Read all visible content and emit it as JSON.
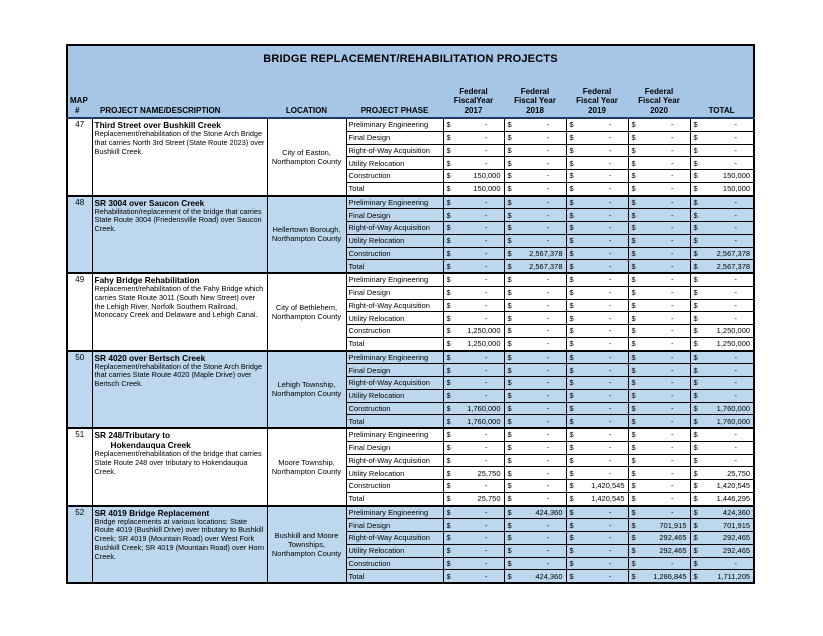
{
  "title": "BRIDGE REPLACEMENT/REHABILITATION PROJECTS",
  "colors": {
    "header_bg": "#a6c6e7",
    "shaded_row_bg": "#bdd7ee",
    "header_underline": "#1f3864",
    "border": "#000000"
  },
  "header": {
    "map": [
      "MAP",
      "#"
    ],
    "name": "PROJECT NAME/DESCRIPTION",
    "location": "LOCATION",
    "phase": "PROJECT PHASE",
    "years": [
      [
        "Federal",
        "FiscalYear",
        "2017"
      ],
      [
        "Federal",
        "Fiscal Year",
        "2018"
      ],
      [
        "Federal",
        "Fiscal Year",
        "2019"
      ],
      [
        "Federal",
        "Fiscal Year",
        "2020"
      ]
    ],
    "total": "TOTAL"
  },
  "phase_labels": [
    "Preliminary Engineering",
    "Final Design",
    "Right-of-Way Acquisition",
    "Utility Relocation",
    "Construction",
    "Total"
  ],
  "currency_symbol": "$",
  "projects": [
    {
      "map": "47",
      "name_lines": [
        "Third Street over Bushkill Creek"
      ],
      "description": "Replacement/rehabilitation of the Stone Arch Bridge that carries North 3rd Street (State Route 2023) over Bushkill Creek.",
      "location": "City of Easton, Northampton County",
      "shaded": false,
      "phases": [
        {
          "label": "Preliminary Engineering",
          "values": [
            "-",
            "-",
            "-",
            "-",
            "-"
          ]
        },
        {
          "label": "Final Design",
          "values": [
            "-",
            "-",
            "-",
            "-",
            "-"
          ]
        },
        {
          "label": "Right-of-Way Acquisition",
          "values": [
            "-",
            "-",
            "-",
            "-",
            "-"
          ]
        },
        {
          "label": "Utility Relocation",
          "values": [
            "-",
            "-",
            "-",
            "-",
            "-"
          ]
        },
        {
          "label": "Construction",
          "values": [
            "150,000",
            "-",
            "-",
            "-",
            "150,000"
          ]
        },
        {
          "label": "Total",
          "values": [
            "150,000",
            "-",
            "-",
            "-",
            "150,000"
          ]
        }
      ]
    },
    {
      "map": "48",
      "name_lines": [
        "SR 3004 over Saucon Creek"
      ],
      "description": "Rehabilitation/replacement of the bridge that carries State Route 3004 (Friedensville Road) over Saucon Creek.",
      "location": "Hellertown Borough, Northampton County",
      "shaded": true,
      "phases": [
        {
          "label": "Preliminary Engineering",
          "values": [
            "-",
            "-",
            "-",
            "-",
            "-"
          ]
        },
        {
          "label": "Final Design",
          "values": [
            "-",
            "-",
            "-",
            "-",
            "-"
          ]
        },
        {
          "label": "Right-of-Way Acquisition",
          "values": [
            "-",
            "-",
            "-",
            "-",
            "-"
          ]
        },
        {
          "label": "Utility Relocation",
          "values": [
            "-",
            "-",
            "-",
            "-",
            "-"
          ]
        },
        {
          "label": "Construction",
          "values": [
            "-",
            "2,567,378",
            "-",
            "-",
            "2,567,378"
          ]
        },
        {
          "label": "Total",
          "values": [
            "-",
            "2,567,378",
            "-",
            "-",
            "2,567,378"
          ]
        }
      ]
    },
    {
      "map": "49",
      "name_lines": [
        "Fahy Bridge Rehabilitation"
      ],
      "description": "Replacement/rehabilitation of the Fahy Bridge which carries State Route 3011 (South New Street) over the Lehigh River, Norfolk Southern Railroad, Monocacy Creek and Delaware and Lehigh Canal.",
      "location": "City of Bethlehem, Northampton County",
      "shaded": false,
      "phases": [
        {
          "label": "Preliminary Engineering",
          "values": [
            "-",
            "-",
            "-",
            "-",
            "-"
          ]
        },
        {
          "label": "Final Design",
          "values": [
            "-",
            "-",
            "-",
            "-",
            "-"
          ]
        },
        {
          "label": "Right-of-Way Acquisition",
          "values": [
            "-",
            "-",
            "-",
            "-",
            "-"
          ]
        },
        {
          "label": "Utility Relocation",
          "values": [
            "-",
            "-",
            "-",
            "-",
            "-"
          ]
        },
        {
          "label": "Construction",
          "values": [
            "1,250,000",
            "-",
            "-",
            "-",
            "1,250,000"
          ]
        },
        {
          "label": "Total",
          "values": [
            "1,250,000",
            "-",
            "-",
            "-",
            "1,250,000"
          ]
        }
      ]
    },
    {
      "map": "50",
      "name_lines": [
        "SR 4020 over Bertsch Creek"
      ],
      "description": "Replacement/rehabilitation of the Stone Arch Bridge that carries State Route 4020 (Maple Drive) over Bertsch Creek.",
      "location": "Lehigh Township, Northampton County",
      "shaded": true,
      "phases": [
        {
          "label": "Preliminary Engineering",
          "values": [
            "-",
            "-",
            "-",
            "-",
            "-"
          ]
        },
        {
          "label": "Final Design",
          "values": [
            "-",
            "-",
            "-",
            "-",
            "-"
          ]
        },
        {
          "label": "Right-of-Way Acquisition",
          "values": [
            "-",
            "-",
            "-",
            "-",
            "-"
          ]
        },
        {
          "label": "Utility Relocation",
          "values": [
            "-",
            "-",
            "-",
            "-",
            "-"
          ]
        },
        {
          "label": "Construction",
          "values": [
            "1,760,000",
            "-",
            "-",
            "-",
            "1,760,000"
          ]
        },
        {
          "label": "Total",
          "values": [
            "1,760,000",
            "-",
            "-",
            "-",
            "1,760,000"
          ]
        }
      ]
    },
    {
      "map": "51",
      "name_lines": [
        "SR 248/Tributary to",
        "Hokendauqua Creek"
      ],
      "description": "Replacement/rehabilitation of the bridge that carries State Route 248 over tributary to Hokendauqua Creek.",
      "location": "Moore Township, Northampton County",
      "shaded": false,
      "phases": [
        {
          "label": "Preliminary Engineering",
          "values": [
            "-",
            "-",
            "-",
            "-",
            "-"
          ]
        },
        {
          "label": "Final Design",
          "values": [
            "-",
            "-",
            "-",
            "-",
            "-"
          ]
        },
        {
          "label": "Right-of-Way Acquisition",
          "values": [
            "-",
            "-",
            "-",
            "-",
            "-"
          ]
        },
        {
          "label": "Utility Relocation",
          "values": [
            "25,750",
            "-",
            "-",
            "-",
            "25,750"
          ]
        },
        {
          "label": "Construction",
          "values": [
            "-",
            "-",
            "1,420,545",
            "-",
            "1,420,545"
          ]
        },
        {
          "label": "Total",
          "values": [
            "25,750",
            "-",
            "1,420,545",
            "-",
            "1,446,295"
          ]
        }
      ]
    },
    {
      "map": "52",
      "name_lines": [
        "SR 4019 Bridge Replacement"
      ],
      "description": "Bridge replacements at various locations: State Route 4019 (Bushkill Drive) over tributary to Bushkill Creek; SR 4019 (Mountain Road) over West Fork Bushkill Creek; SR 4019 (Mountain Road) over Horn Creek.",
      "location": "Bushkill and Moore Townships, Northampton County",
      "shaded": true,
      "phases": [
        {
          "label": "Preliminary Engineering",
          "values": [
            "-",
            "424,360",
            "-",
            "-",
            "424,360"
          ]
        },
        {
          "label": "Final Design",
          "values": [
            "-",
            "-",
            "-",
            "701,915",
            "701,915"
          ]
        },
        {
          "label": "Right-of-Way Acquisition",
          "values": [
            "-",
            "-",
            "-",
            "292,465",
            "292,465"
          ]
        },
        {
          "label": "Utility Relocation",
          "values": [
            "-",
            "-",
            "-",
            "292,465",
            "292,465"
          ]
        },
        {
          "label": "Construction",
          "values": [
            "-",
            "-",
            "-",
            "-",
            "-"
          ]
        },
        {
          "label": "Total",
          "values": [
            "-",
            "424,360",
            "-",
            "1,286,845",
            "1,711,205"
          ]
        }
      ]
    }
  ]
}
